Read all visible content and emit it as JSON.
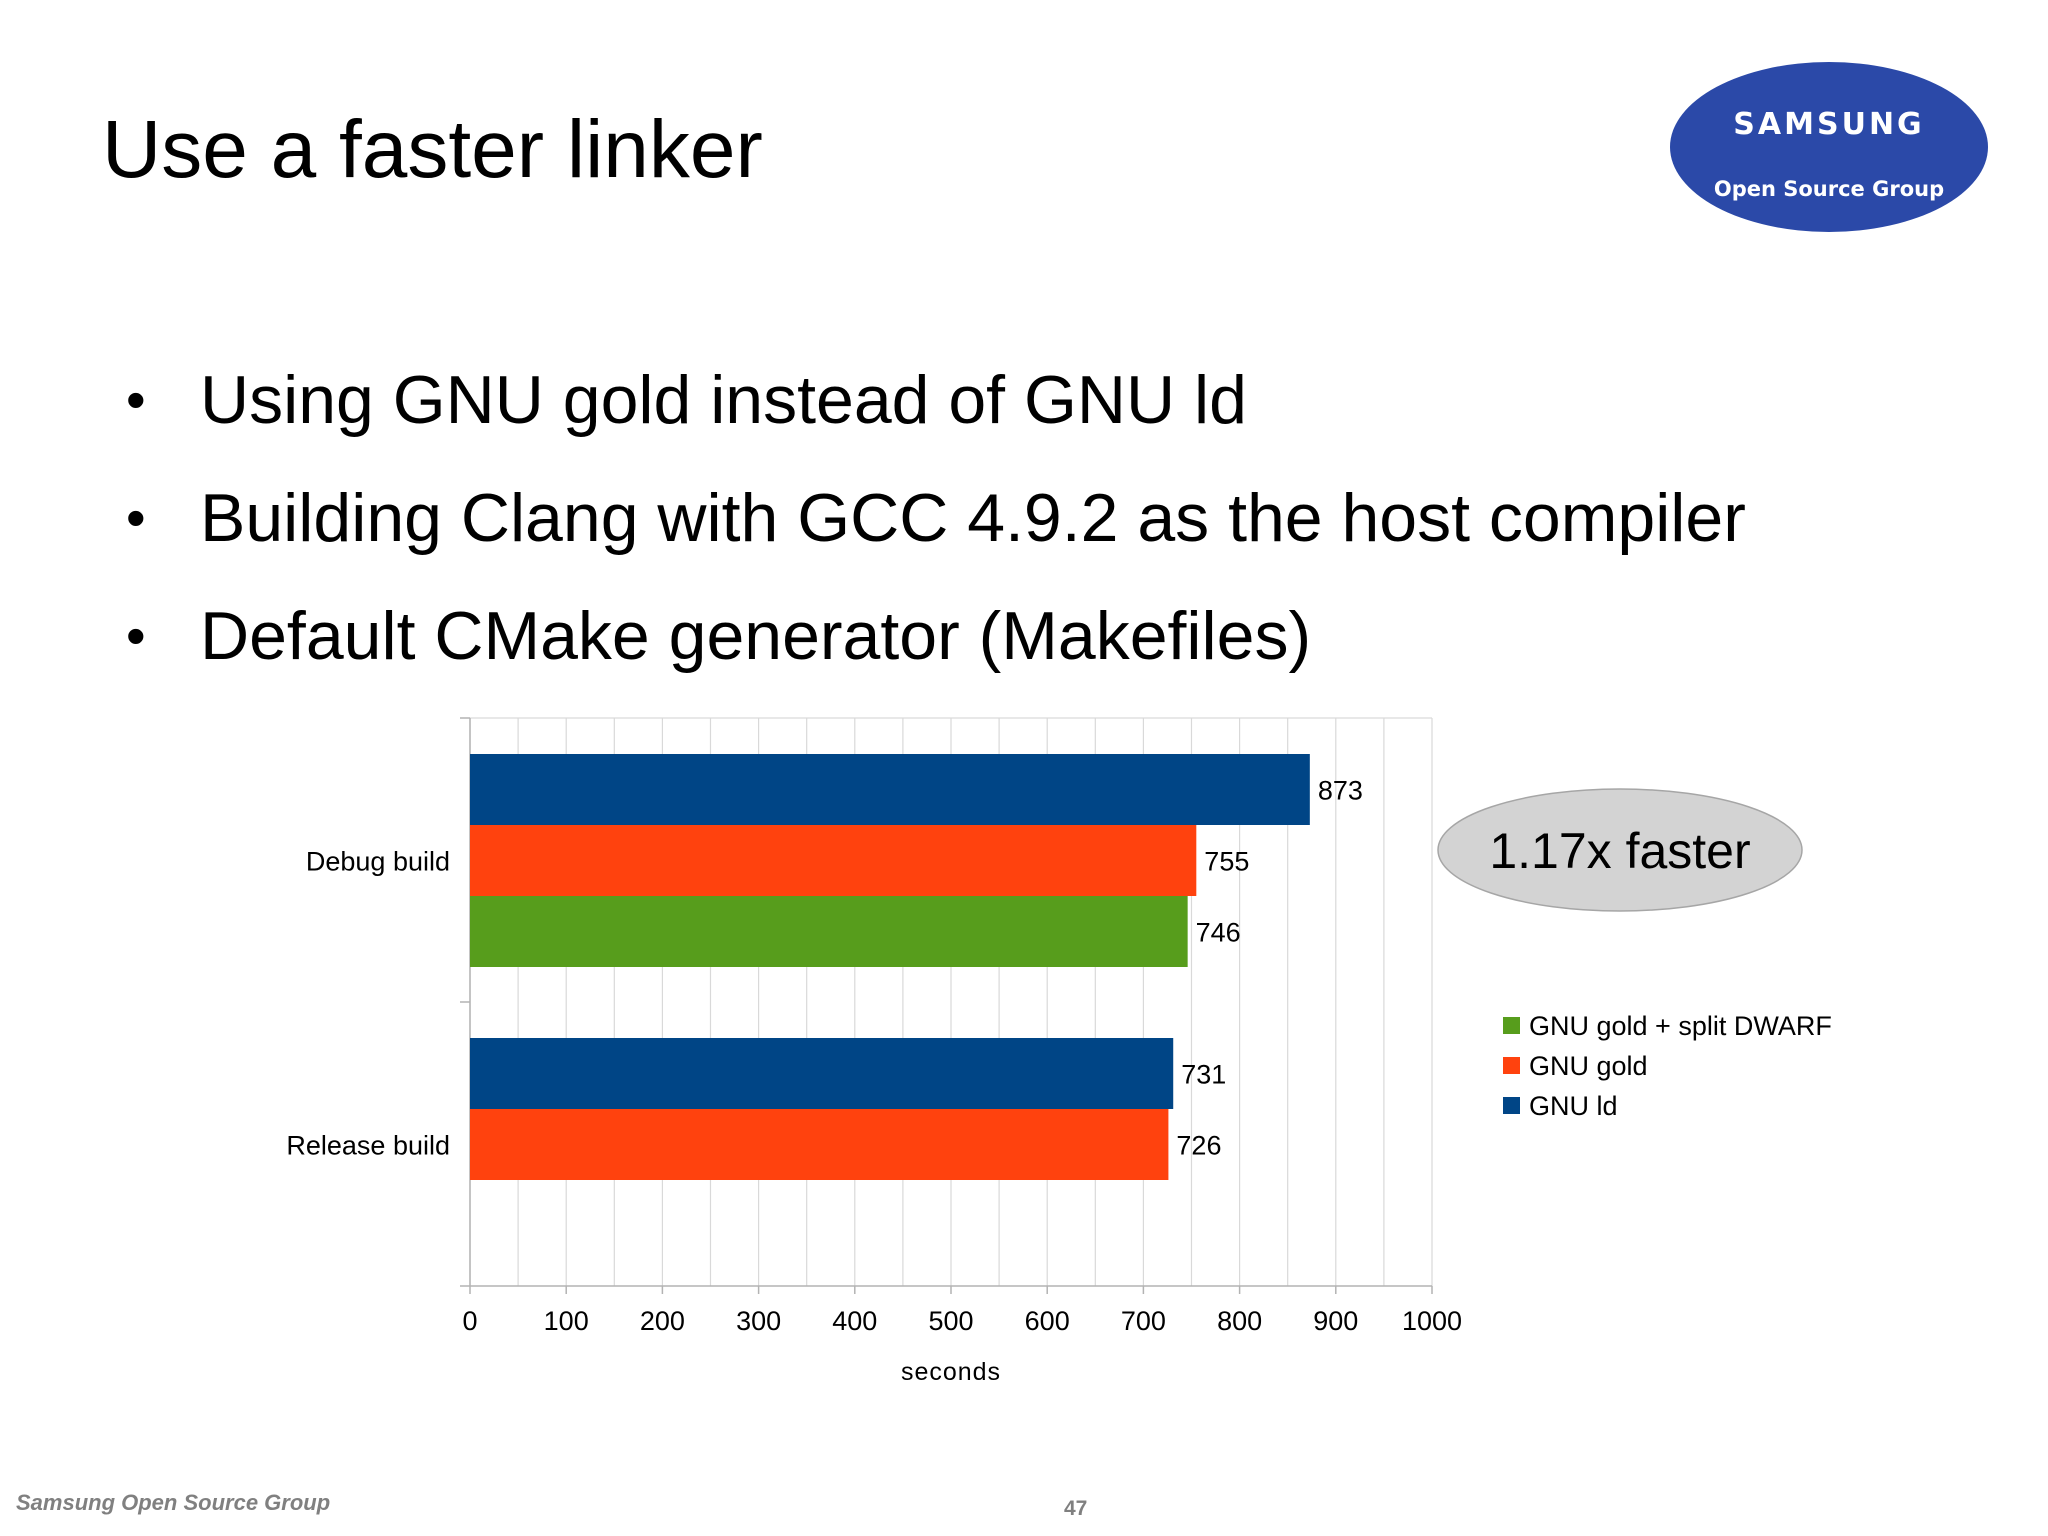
{
  "slide": {
    "title": "Use a faster linker",
    "bullets": [
      "Using GNU gold instead of GNU ld",
      "Building Clang with GCC 4.9.2 as the host compiler",
      "Default CMake generator (Makefiles)"
    ],
    "bullet_symbol": "•",
    "callout": "1.17x faster",
    "footer": {
      "text": "Samsung Open Source Group",
      "page_number": "47"
    }
  },
  "logo": {
    "brand": "SAMSUNG",
    "subtitle": "Open Source Group",
    "color": "#2b49a8"
  },
  "chart_data": {
    "type": "bar",
    "orientation": "horizontal",
    "categories": [
      "Debug build",
      "Release build"
    ],
    "series": [
      {
        "name": "GNU ld",
        "color": "#004586",
        "values": [
          873,
          731
        ]
      },
      {
        "name": "GNU gold",
        "color": "#ff420e",
        "values": [
          755,
          726
        ]
      },
      {
        "name": "GNU gold + split DWARF",
        "color": "#579d1c",
        "values": [
          746,
          null
        ]
      }
    ],
    "legend_order": [
      "GNU gold + split DWARF",
      "GNU gold",
      "GNU ld"
    ],
    "xlabel": "seconds",
    "ylabel": "",
    "xlim": [
      0,
      1000
    ],
    "xticks": [
      0,
      100,
      200,
      300,
      400,
      500,
      600,
      700,
      800,
      900,
      1000
    ],
    "grid": true,
    "data_labels": true,
    "legend_position": "right"
  }
}
